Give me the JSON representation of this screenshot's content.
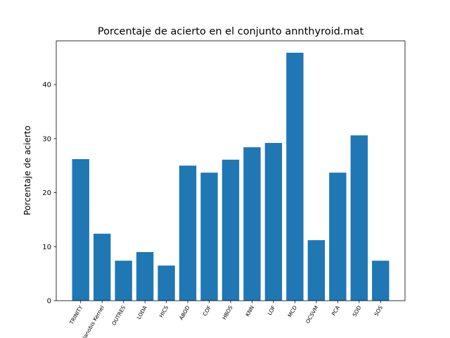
{
  "chart_data": {
    "type": "bar",
    "title": "Porcentaje de acierto en el conjunto annthyroid.mat",
    "y_label": "Porcentaje de acierto",
    "categories": [
      "TRINITY",
      "Mahalanobis Kernel",
      "OUTRES",
      "LODA",
      "HICS",
      "ABOD",
      "COF",
      "HBOS",
      "KNN",
      "LOF",
      "MCD",
      "OCSVM",
      "PCA",
      "SOD",
      "SOS"
    ],
    "values": [
      26.2,
      12.4,
      7.4,
      9.0,
      6.5,
      25.0,
      23.7,
      26.1,
      28.4,
      29.2,
      45.9,
      11.2,
      23.7,
      30.6,
      7.4
    ],
    "color": "#1f77b4",
    "ylim": [
      0,
      48.1
    ],
    "yticks": [
      0,
      10,
      20,
      30,
      40
    ],
    "grid": false
  }
}
